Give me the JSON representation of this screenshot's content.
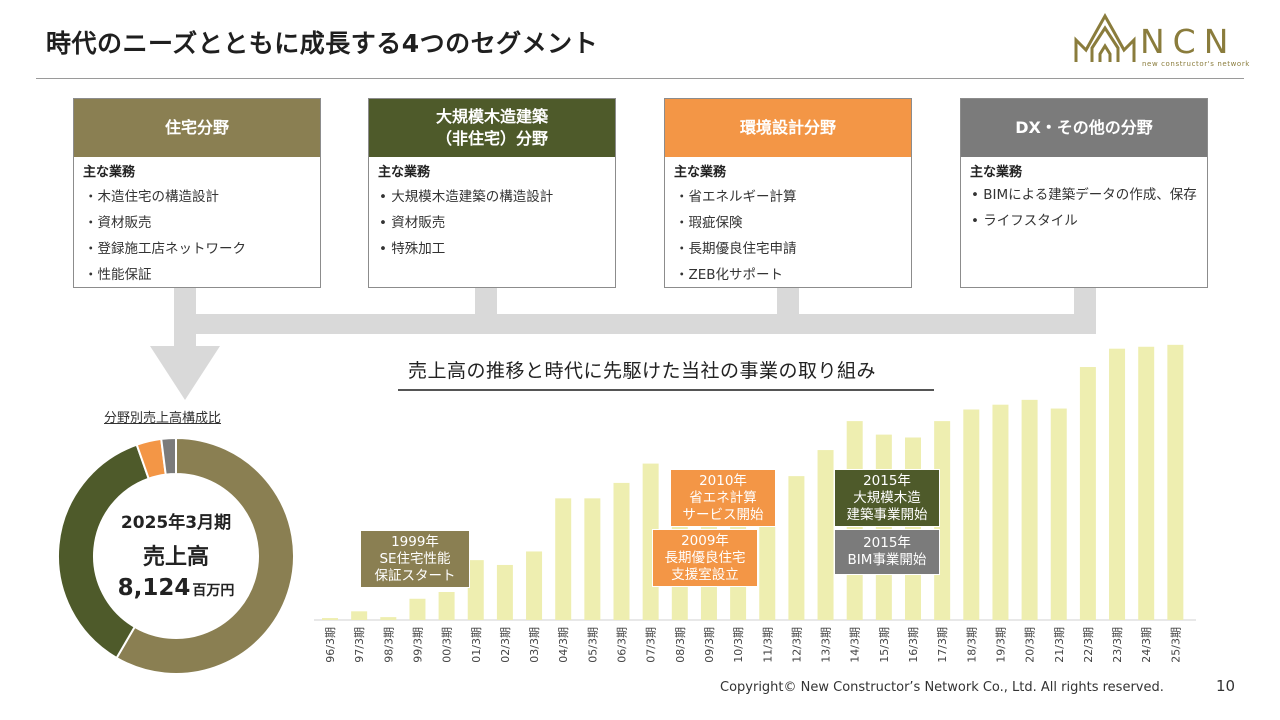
{
  "header": {
    "title": "時代のニーズとともに成長する4つのセグメント"
  },
  "logo": {
    "text": "NCN",
    "subtext": "new constructor's network",
    "color": "#8a7c3c"
  },
  "segments": [
    {
      "header": "住宅分野",
      "color": "#8a7f52",
      "sub": "主な業務",
      "items": [
        "・木造住宅の構造設計",
        "・資材販売",
        "・登録施工店ネットワーク",
        "・性能保証"
      ]
    },
    {
      "header": "大規模木造建築\n（非住宅）分野",
      "color": "#4e5a2a",
      "sub": "主な業務",
      "items": [
        "•  大規模木造建築の構造設計",
        "•  資材販売",
        "•  特殊加工"
      ]
    },
    {
      "header": "環境設計分野",
      "color": "#f39646",
      "sub": "主な業務",
      "items": [
        "・省エネルギー計算",
        "・瑕疵保険",
        "・長期優良住宅申請",
        "・ZEB化サポート"
      ]
    },
    {
      "header": "DX・その他の分野",
      "color": "#7b7b7b",
      "sub": "主な業務",
      "items": [
        "•  BIMによる建築データの作成、保存",
        "•  ライフスタイル"
      ]
    }
  ],
  "chart_section": {
    "title": "売上高の推移と時代に先駆けた当社の事業の取り組み"
  },
  "donut": {
    "title": "分野別売上高構成比",
    "center_line1": "2025年3月期",
    "center_line2": "売上高",
    "center_value": "8,124",
    "center_unit": "百万円",
    "segments": [
      {
        "share": 0.584,
        "color": "#8a7f52"
      },
      {
        "share": 0.362,
        "color": "#4e5a2a"
      },
      {
        "share": 0.034,
        "color": "#f39646"
      },
      {
        "share": 0.02,
        "color": "#7b7b7b"
      }
    ]
  },
  "chart_data": {
    "type": "bar",
    "bar_color": "#eeeeb0",
    "categories": [
      "96/3期",
      "97/3期",
      "98/3期",
      "99/3期",
      "00/3期",
      "01/3期",
      "02/3期",
      "03/3期",
      "04/3期",
      "05/3期",
      "06/3期",
      "07/3期",
      "08/3期",
      "09/3期",
      "10/3期",
      "11/3期",
      "12/3期",
      "13/3期",
      "14/3期",
      "15/3期",
      "16/3期",
      "17/3期",
      "18/3期",
      "19/3期",
      "20/3期",
      "21/3期",
      "22/3期",
      "23/3期",
      "24/3期",
      "25/3期"
    ],
    "values": [
      0.2,
      0.9,
      0.3,
      2.2,
      2.9,
      6.2,
      5.7,
      7.1,
      12.6,
      12.6,
      14.2,
      16.2,
      11.7,
      12.2,
      11.9,
      12.3,
      14.9,
      17.6,
      20.6,
      19.2,
      18.9,
      20.6,
      21.8,
      22.3,
      22.8,
      21.9,
      26.2,
      28.1,
      28.3,
      28.5
    ],
    "annotations": [
      {
        "text": "1999年\nSE住宅性能\n保証スタート",
        "color": "#8a7f52"
      },
      {
        "text": "2010年\n省エネ計算\nサービス開始",
        "color": "#f39646"
      },
      {
        "text": "2009年\n長期優良住宅\n支援室設立",
        "color": "#f39646"
      },
      {
        "text": "2015年\n大規模木造\n建築事業開始",
        "color": "#4e5a2a"
      },
      {
        "text": "2015年\nBIM事業開始",
        "color": "#7b7b7b"
      }
    ]
  },
  "footer": {
    "copyright": "Copyright© New Constructor’s Network Co., Ltd. All rights reserved.",
    "page": "10"
  }
}
